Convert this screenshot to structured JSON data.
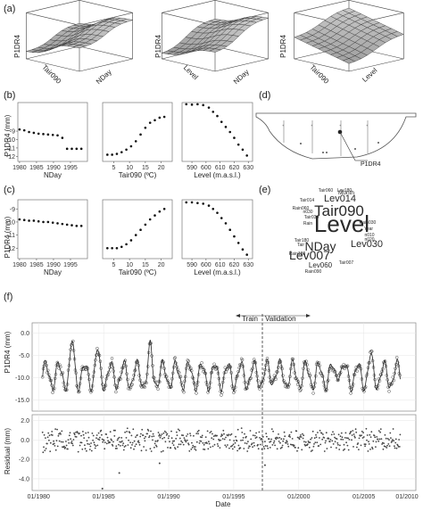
{
  "panels": {
    "a": {
      "label": "(a)"
    },
    "b": {
      "label": "(b)"
    },
    "c": {
      "label": "(c)"
    },
    "d": {
      "label": "(d)"
    },
    "e": {
      "label": "(e)"
    },
    "f": {
      "label": "(f)"
    }
  },
  "surfaces": [
    {
      "z": "P1DR4",
      "x": "Tair090",
      "y": "NDay"
    },
    {
      "z": "P1DR4",
      "x": "Level",
      "y": "NDay"
    },
    {
      "z": "P1DR4",
      "x": "Tair090",
      "y": "Level"
    }
  ],
  "dam_label": "P1DR4",
  "wordcloud": [
    {
      "text": "Level",
      "size": 26
    },
    {
      "text": "Tair090",
      "size": 17
    },
    {
      "text": "NDay",
      "size": 14
    },
    {
      "text": "Lev007",
      "size": 14
    },
    {
      "text": "Lev014",
      "size": 11
    },
    {
      "text": "Lev030",
      "size": 11
    },
    {
      "text": "Lev060",
      "size": 8
    },
    {
      "text": "Month",
      "size": 6.5
    },
    {
      "text": "Tair060",
      "size": 5
    },
    {
      "text": "Lev180",
      "size": 5
    },
    {
      "text": "Tair014",
      "size": 5
    },
    {
      "text": "Rain060",
      "size": 5
    },
    {
      "text": "n030",
      "size": 5
    },
    {
      "text": "Tair030",
      "size": 5
    },
    {
      "text": "Rain",
      "size": 5
    },
    {
      "text": "Rain030",
      "size": 5
    },
    {
      "text": "Year",
      "size": 5
    },
    {
      "text": "n010",
      "size": 5
    },
    {
      "text": "n020",
      "size": 5
    },
    {
      "text": "Tair180",
      "size": 5
    },
    {
      "text": "Tair",
      "size": 5
    },
    {
      "text": "Rain180",
      "size": 5
    },
    {
      "text": "Tair007",
      "size": 5
    },
    {
      "text": "Rain090",
      "size": 5
    }
  ],
  "chart_data": [
    {
      "type": "scatter",
      "panel": "b",
      "ylabel": "P1DR4 (mm)",
      "subplots": [
        {
          "xlabel": "NDay",
          "xticks": [
            "1980",
            "1985",
            "1990",
            "1995"
          ],
          "xlim": [
            1979.5,
            2000
          ],
          "yticks": [
            "-9",
            "-10",
            "-11",
            "-12"
          ],
          "ylim": [
            -12.6,
            -5.6
          ],
          "x": [
            1980,
            1981.4,
            1982.8,
            1984.2,
            1985.6,
            1987,
            1988.4,
            1989.8,
            1991.2,
            1992.6,
            1994,
            1995.4,
            1996.8,
            1998.2
          ],
          "y": [
            -8.8,
            -8.9,
            -9.1,
            -9.2,
            -9.3,
            -9.35,
            -9.4,
            -9.45,
            -9.5,
            -9.8,
            -11.1,
            -11.1,
            -11.1,
            -11.1
          ]
        },
        {
          "xlabel": "Tair090 (ºC)",
          "xticks": [
            "5",
            "10",
            "15",
            "20"
          ],
          "xlim": [
            1.5,
            23.5
          ],
          "yticks": [],
          "ylim": [
            -12.6,
            -5.6
          ],
          "x": [
            3,
            4.5,
            6,
            7.5,
            9,
            10.5,
            12,
            13.5,
            15,
            16.5,
            18,
            19.5,
            21
          ],
          "y": [
            -11.8,
            -11.8,
            -11.7,
            -11.5,
            -11.2,
            -10.8,
            -10.2,
            -9.4,
            -8.6,
            -8.0,
            -7.7,
            -7.4,
            -7.3
          ]
        },
        {
          "xlabel": "Level (m.a.s.l.)",
          "xticks": [
            "590",
            "600",
            "610",
            "620",
            "630"
          ],
          "xlim": [
            583,
            633
          ],
          "yticks": [],
          "ylim": [
            -12.6,
            -5.6
          ],
          "x": [
            586,
            590,
            594,
            598,
            602,
            605,
            608,
            611,
            614,
            617,
            620,
            623,
            626,
            629
          ],
          "y": [
            -5.8,
            -5.85,
            -5.8,
            -5.9,
            -6.2,
            -6.7,
            -7.2,
            -7.9,
            -8.5,
            -9.1,
            -9.8,
            -10.6,
            -11.2,
            -11.9
          ]
        }
      ]
    },
    {
      "type": "scatter",
      "panel": "c",
      "ylabel": "P1DR4 (mm)",
      "subplots": [
        {
          "xlabel": "NDay",
          "xticks": [
            "1980",
            "1985",
            "1990",
            "1995"
          ],
          "xlim": [
            1979.5,
            2000
          ],
          "yticks": [
            "-9",
            "-10",
            "-11",
            "-12"
          ],
          "ylim": [
            -12.8,
            -8.3
          ],
          "x": [
            1980,
            1981.4,
            1982.8,
            1984.2,
            1985.6,
            1987,
            1988.4,
            1989.8,
            1991.2,
            1992.6,
            1994,
            1995.4,
            1996.8,
            1998.2
          ],
          "y": [
            -9.8,
            -9.85,
            -9.9,
            -9.9,
            -9.95,
            -10,
            -10,
            -10.05,
            -10.1,
            -10.15,
            -10.2,
            -10.25,
            -10.3,
            -10.3
          ]
        },
        {
          "xlabel": "Tair090 (ºC)",
          "xticks": [
            "5",
            "10",
            "15",
            "20"
          ],
          "xlim": [
            1.5,
            23.5
          ],
          "yticks": [],
          "ylim": [
            -12.8,
            -8.3
          ],
          "x": [
            3,
            4.5,
            6,
            7.5,
            9,
            10.5,
            12,
            13.5,
            15,
            16.5,
            18,
            19.5,
            21
          ],
          "y": [
            -12.0,
            -12.0,
            -12.0,
            -11.9,
            -11.7,
            -11.4,
            -11.0,
            -10.6,
            -10.2,
            -9.8,
            -9.5,
            -9.2,
            -9.0
          ]
        },
        {
          "xlabel": "Level (m.a.s.l.)",
          "xticks": [
            "590",
            "600",
            "610",
            "620",
            "630"
          ],
          "xlim": [
            583,
            633
          ],
          "yticks": [],
          "ylim": [
            -12.8,
            -8.3
          ],
          "x": [
            586,
            590,
            594,
            598,
            602,
            605,
            608,
            611,
            614,
            617,
            620,
            623,
            626,
            629
          ],
          "y": [
            -8.5,
            -8.5,
            -8.55,
            -8.6,
            -8.75,
            -9.0,
            -9.3,
            -9.7,
            -10.1,
            -10.6,
            -11.1,
            -11.6,
            -12.1,
            -12.5
          ]
        }
      ]
    },
    {
      "type": "line",
      "panel": "f-top",
      "ylabel": "P1DR4 (mm)",
      "xlim": [
        1980.5,
        2010
      ],
      "ylim": [
        -17.5,
        2.3
      ],
      "yticks": [
        {
          "v": 0,
          "t": "0.0"
        },
        {
          "v": -5,
          "t": "-5.0"
        },
        {
          "v": -10,
          "t": "-10.0"
        },
        {
          "v": -15,
          "t": "-15.0"
        }
      ],
      "split": 1998.2,
      "train_label": "Train",
      "validation_label": "Validation",
      "seasonal": {
        "start": 1981.3,
        "end": 2008.8,
        "mean": -9.5,
        "amp": 2.8,
        "phase": 0.3,
        "peaks": [
          {
            "t": 1983.6,
            "v": -0.8
          },
          {
            "t": 1985.5,
            "v": -2.8
          },
          {
            "t": 1989.6,
            "v": -2.3
          },
          {
            "t": 1999.2,
            "v": -5.2
          },
          {
            "t": 2004.1,
            "v": -3.8
          },
          {
            "t": 2006.5,
            "v": -4.2
          }
        ]
      }
    },
    {
      "type": "scatter",
      "panel": "f-bottom",
      "ylabel": "Residual (mm)",
      "xlabel": "Date",
      "xlim": [
        1980.5,
        2010
      ],
      "ylim": [
        -5.2,
        2.6
      ],
      "yticks": [
        {
          "v": 2,
          "t": "2.0"
        },
        {
          "v": 0,
          "t": "0.0"
        },
        {
          "v": -2,
          "t": "-2.0"
        },
        {
          "v": -4,
          "t": "-4.0"
        }
      ],
      "xticks": [
        {
          "v": 1981,
          "t": "01/1980"
        },
        {
          "v": 1986,
          "t": "01/1985"
        },
        {
          "v": 1991,
          "t": "01/1990"
        },
        {
          "v": 1996,
          "t": "01/1995"
        },
        {
          "v": 2001,
          "t": "01/2000"
        },
        {
          "v": 2006,
          "t": "01/2005"
        },
        {
          "v": 2011,
          "t": "01/2010"
        }
      ],
      "outliers": [
        {
          "t": 1987.2,
          "v": -3.4
        },
        {
          "t": 1985.9,
          "v": -5.0
        },
        {
          "t": 1998.4,
          "v": -2.6
        },
        {
          "t": 1990.3,
          "v": -2.4
        }
      ]
    }
  ]
}
